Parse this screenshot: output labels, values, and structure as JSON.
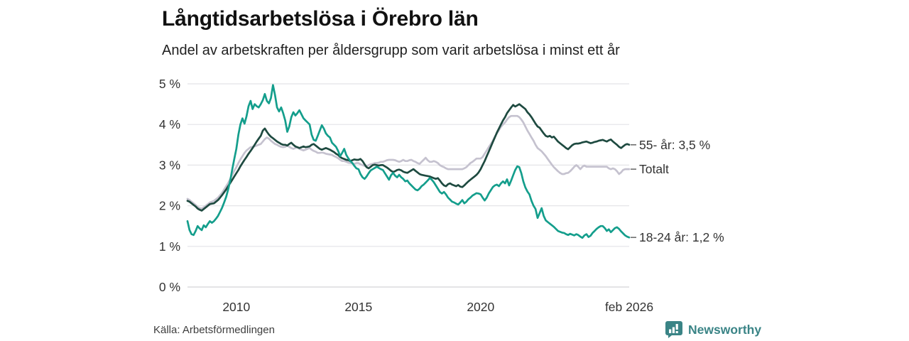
{
  "header": {
    "title": "Långtidsarbetslösa i Örebro län",
    "subtitle": "Andel av arbetskraften per åldersgrupp som varit arbetslösa i minst ett år"
  },
  "footer": {
    "source": "Källa: Arbetsförmedlingen",
    "logo_text": "Newsworthy"
  },
  "colors": {
    "series_total": "#c5c2cf",
    "series_55plus": "#1e4a40",
    "series_18_24": "#149e8c",
    "grid": "#e4e4e8",
    "axis": "#d4d4d8",
    "text": "#333333",
    "logo": "#3a8486"
  },
  "chart_data": {
    "type": "line",
    "title": "Långtidsarbetslösa i Örebro län",
    "subtitle": "Andel av arbetskraften per åldersgrupp som varit arbetslösa i minst ett år",
    "x_start": "2008-01",
    "x_end": "2026-02",
    "ylim": [
      0,
      5
    ],
    "unit": "%",
    "grid": "horizontal",
    "legend_position": "right-end-labels",
    "y_ticks": [
      "0 %",
      "1 %",
      "2 %",
      "3 %",
      "4 %",
      "5 %"
    ],
    "x_ticks": [
      {
        "label": "2010",
        "month_index": 24
      },
      {
        "label": "2015",
        "month_index": 84
      },
      {
        "label": "2020",
        "month_index": 144
      },
      {
        "label": "feb 2026",
        "month_index": 217
      }
    ],
    "series": [
      {
        "name": "Totalt",
        "end_label": "Totalt",
        "color": "#c5c2cf",
        "values": [
          2.17,
          2.14,
          2.1,
          2.06,
          2.02,
          1.97,
          1.94,
          1.93,
          1.96,
          2.0,
          2.04,
          2.08,
          2.1,
          2.12,
          2.16,
          2.2,
          2.26,
          2.32,
          2.4,
          2.48,
          2.56,
          2.66,
          2.76,
          2.86,
          2.95,
          3.05,
          3.14,
          3.22,
          3.3,
          3.36,
          3.4,
          3.44,
          3.45,
          3.46,
          3.48,
          3.5,
          3.52,
          3.58,
          3.64,
          3.68,
          3.65,
          3.6,
          3.56,
          3.52,
          3.5,
          3.47,
          3.45,
          3.44,
          3.45,
          3.48,
          3.45,
          3.42,
          3.4,
          3.42,
          3.44,
          3.4,
          3.38,
          3.36,
          3.38,
          3.4,
          3.42,
          3.38,
          3.35,
          3.33,
          3.3,
          3.3,
          3.31,
          3.3,
          3.28,
          3.27,
          3.26,
          3.25,
          3.22,
          3.2,
          3.17,
          3.13,
          3.1,
          3.1,
          3.08,
          3.06,
          3.05,
          3.04,
          3.03,
          3.05,
          3.05,
          3.02,
          3.0,
          2.98,
          2.97,
          3.0,
          3.02,
          3.03,
          3.05,
          3.05,
          3.06,
          3.08,
          3.08,
          3.1,
          3.12,
          3.13,
          3.13,
          3.13,
          3.12,
          3.1,
          3.08,
          3.1,
          3.13,
          3.1,
          3.1,
          3.12,
          3.13,
          3.1,
          3.08,
          3.05,
          3.03,
          3.08,
          3.13,
          3.18,
          3.12,
          3.08,
          3.08,
          3.1,
          3.08,
          3.05,
          3.0,
          2.97,
          2.95,
          2.92,
          2.9,
          2.9,
          2.9,
          2.9,
          2.9,
          2.9,
          2.9,
          2.9,
          2.92,
          2.95,
          3.0,
          3.05,
          3.08,
          3.12,
          3.16,
          3.16,
          3.16,
          3.2,
          3.28,
          3.36,
          3.44,
          3.52,
          3.6,
          3.7,
          3.78,
          3.86,
          3.94,
          4.0,
          4.05,
          4.12,
          4.18,
          4.21,
          4.21,
          4.21,
          4.21,
          4.18,
          4.12,
          4.05,
          3.95,
          3.85,
          3.77,
          3.68,
          3.6,
          3.5,
          3.42,
          3.38,
          3.34,
          3.28,
          3.22,
          3.15,
          3.08,
          3.01,
          2.95,
          2.9,
          2.85,
          2.81,
          2.78,
          2.78,
          2.8,
          2.81,
          2.85,
          2.9,
          2.96,
          3.0,
          2.96,
          2.9,
          2.96,
          2.99,
          2.96,
          2.96,
          2.96,
          2.96,
          2.96,
          2.96,
          2.96,
          2.96,
          2.96,
          2.96,
          2.96,
          2.92,
          2.9,
          2.92,
          2.9,
          2.85,
          2.78,
          2.82,
          2.88,
          2.9,
          2.9,
          2.9
        ]
      },
      {
        "name": "55- år",
        "end_label": "55- år: 3,5 %",
        "color": "#1e4a40",
        "values": [
          2.12,
          2.1,
          2.06,
          2.02,
          1.98,
          1.93,
          1.9,
          1.88,
          1.92,
          1.96,
          2.0,
          2.04,
          2.05,
          2.06,
          2.1,
          2.14,
          2.2,
          2.26,
          2.33,
          2.4,
          2.48,
          2.56,
          2.64,
          2.72,
          2.8,
          2.88,
          2.97,
          3.05,
          3.13,
          3.2,
          3.28,
          3.35,
          3.42,
          3.5,
          3.58,
          3.65,
          3.72,
          3.85,
          3.9,
          3.82,
          3.75,
          3.7,
          3.66,
          3.62,
          3.58,
          3.55,
          3.52,
          3.5,
          3.5,
          3.48,
          3.52,
          3.55,
          3.5,
          3.46,
          3.44,
          3.42,
          3.44,
          3.46,
          3.44,
          3.45,
          3.46,
          3.5,
          3.52,
          3.48,
          3.44,
          3.4,
          3.38,
          3.4,
          3.42,
          3.4,
          3.38,
          3.35,
          3.32,
          3.28,
          3.25,
          3.2,
          3.17,
          3.15,
          3.13,
          3.12,
          3.1,
          3.12,
          3.14,
          3.13,
          3.13,
          3.15,
          3.1,
          3.02,
          2.95,
          2.92,
          2.96,
          3.0,
          3.01,
          3.0,
          2.99,
          3.0,
          3.0,
          2.97,
          2.94,
          2.9,
          2.86,
          2.83,
          2.85,
          2.88,
          2.89,
          2.87,
          2.84,
          2.82,
          2.81,
          2.84,
          2.87,
          2.9,
          2.86,
          2.82,
          2.78,
          2.76,
          2.75,
          2.74,
          2.73,
          2.72,
          2.7,
          2.68,
          2.66,
          2.68,
          2.62,
          2.55,
          2.5,
          2.48,
          2.53,
          2.55,
          2.52,
          2.5,
          2.48,
          2.51,
          2.47,
          2.46,
          2.5,
          2.55,
          2.6,
          2.64,
          2.68,
          2.72,
          2.76,
          2.82,
          2.9,
          3.0,
          3.1,
          3.22,
          3.33,
          3.45,
          3.57,
          3.68,
          3.8,
          3.9,
          4.0,
          4.1,
          4.18,
          4.28,
          4.35,
          4.42,
          4.48,
          4.44,
          4.47,
          4.5,
          4.46,
          4.42,
          4.38,
          4.3,
          4.25,
          4.18,
          4.1,
          4.02,
          3.95,
          3.92,
          3.85,
          3.78,
          3.72,
          3.7,
          3.72,
          3.68,
          3.7,
          3.64,
          3.58,
          3.54,
          3.5,
          3.46,
          3.42,
          3.39,
          3.44,
          3.49,
          3.52,
          3.53,
          3.53,
          3.54,
          3.56,
          3.57,
          3.58,
          3.56,
          3.54,
          3.55,
          3.57,
          3.58,
          3.6,
          3.61,
          3.62,
          3.6,
          3.58,
          3.61,
          3.63,
          3.58,
          3.54,
          3.5,
          3.45,
          3.42,
          3.46,
          3.5,
          3.52,
          3.5
        ]
      },
      {
        "name": "18-24 år",
        "end_label": "18-24 år: 1,2 %",
        "color": "#149e8c",
        "values": [
          1.62,
          1.4,
          1.3,
          1.28,
          1.38,
          1.5,
          1.44,
          1.4,
          1.52,
          1.47,
          1.55,
          1.62,
          1.58,
          1.62,
          1.68,
          1.75,
          1.85,
          1.95,
          2.08,
          2.22,
          2.4,
          2.62,
          2.9,
          3.15,
          3.4,
          3.75,
          4.0,
          4.15,
          4.02,
          4.2,
          4.45,
          4.58,
          4.38,
          4.5,
          4.45,
          4.42,
          4.5,
          4.6,
          4.75,
          4.58,
          4.52,
          4.65,
          4.97,
          4.72,
          4.42,
          4.32,
          4.42,
          4.28,
          4.1,
          3.82,
          3.95,
          4.18,
          4.3,
          4.22,
          4.28,
          4.35,
          4.25,
          4.15,
          4.1,
          4.05,
          4.0,
          3.75,
          3.62,
          3.6,
          3.72,
          3.85,
          3.98,
          3.9,
          3.78,
          3.72,
          3.68,
          3.55,
          3.5,
          3.45,
          3.35,
          3.22,
          3.3,
          3.4,
          3.25,
          3.17,
          3.1,
          3.05,
          2.98,
          2.92,
          2.9,
          2.78,
          2.7,
          2.66,
          2.72,
          2.8,
          2.87,
          2.9,
          2.93,
          2.96,
          2.93,
          2.9,
          2.88,
          2.8,
          2.72,
          2.64,
          2.75,
          2.81,
          2.74,
          2.7,
          2.76,
          2.7,
          2.66,
          2.6,
          2.62,
          2.55,
          2.5,
          2.45,
          2.4,
          2.38,
          2.42,
          2.48,
          2.52,
          2.57,
          2.62,
          2.68,
          2.64,
          2.58,
          2.5,
          2.42,
          2.34,
          2.3,
          2.34,
          2.28,
          2.2,
          2.15,
          2.1,
          2.08,
          2.05,
          2.03,
          2.08,
          2.14,
          2.06,
          2.1,
          2.16,
          2.2,
          2.25,
          2.28,
          2.31,
          2.3,
          2.28,
          2.2,
          2.13,
          2.2,
          2.3,
          2.38,
          2.46,
          2.5,
          2.52,
          2.48,
          2.55,
          2.6,
          2.55,
          2.65,
          2.5,
          2.62,
          2.75,
          2.88,
          2.97,
          2.95,
          2.8,
          2.6,
          2.45,
          2.35,
          2.28,
          2.12,
          2.0,
          1.92,
          1.7,
          1.82,
          1.94,
          1.75,
          1.64,
          1.6,
          1.56,
          1.52,
          1.48,
          1.43,
          1.38,
          1.36,
          1.34,
          1.33,
          1.3,
          1.28,
          1.31,
          1.29,
          1.27,
          1.3,
          1.28,
          1.24,
          1.21,
          1.27,
          1.3,
          1.23,
          1.26,
          1.33,
          1.38,
          1.43,
          1.47,
          1.5,
          1.5,
          1.45,
          1.38,
          1.42,
          1.35,
          1.4,
          1.45,
          1.47,
          1.43,
          1.37,
          1.32,
          1.27,
          1.24,
          1.22
        ]
      }
    ]
  }
}
